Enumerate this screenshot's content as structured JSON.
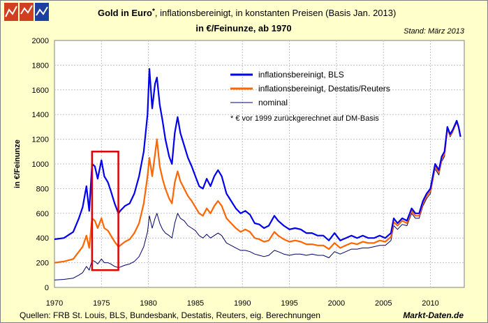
{
  "header": {
    "title_bold": "Gold in Euro",
    "title_star": "*",
    "title_rest": ", inflationsbereinigt, in konstanten Preisen (Basis Jan. 2013)",
    "subtitle": "in €/Feinunze, ab 1970",
    "stand": "Stand: März 2013"
  },
  "footer": {
    "sources": "Quellen: FRB St. Louis, BLS, Bundesbank, Destatis, Reuters, eig. Berechnungen",
    "brand": "Markt-Daten.de"
  },
  "colors": {
    "background": "#ffffcc",
    "plot_background": "#ffffff",
    "grid": "#c0c0c0",
    "bls": "#0000ee",
    "destatis": "#ff6600",
    "nominal": "#000066",
    "highlight": "#dd0000",
    "logo_left": "#d04020",
    "logo_right": "#1f3f9f"
  },
  "logo": {
    "icon": "chart-logo-icon"
  },
  "chart_data": {
    "type": "line",
    "title": "Gold in Euro*, inflationsbereinigt, in konstanten Preisen (Basis Jan. 2013)",
    "subtitle": "in €/Feinunze, ab 1970",
    "xlabel": "",
    "ylabel": "in €/Feinunze",
    "xlim": [
      1970,
      2013.6
    ],
    "ylim": [
      0,
      2000
    ],
    "x_ticks": [
      1970,
      1975,
      1980,
      1985,
      1990,
      1995,
      2000,
      2005,
      2010
    ],
    "y_ticks": [
      0,
      200,
      400,
      600,
      800,
      1000,
      1200,
      1400,
      1600,
      1800,
      2000
    ],
    "grid": true,
    "legend_position": "top-center",
    "annotation": "* € vor 1999 zurückgerechnet auf DM-Basis",
    "highlight_box": {
      "x": [
        1974.0,
        1976.8
      ],
      "y": [
        140,
        1100
      ]
    },
    "series": [
      {
        "name": "inflationsbereinigt, BLS",
        "color": "#0000ee",
        "points": [
          [
            1970,
            390
          ],
          [
            1971,
            400
          ],
          [
            1972,
            450
          ],
          [
            1972.6,
            560
          ],
          [
            1973,
            650
          ],
          [
            1973.4,
            820
          ],
          [
            1973.7,
            620
          ],
          [
            1974,
            1000
          ],
          [
            1974.3,
            980
          ],
          [
            1974.6,
            880
          ],
          [
            1975,
            1030
          ],
          [
            1975.3,
            900
          ],
          [
            1975.7,
            850
          ],
          [
            1976,
            780
          ],
          [
            1976.4,
            680
          ],
          [
            1976.8,
            600
          ],
          [
            1977,
            620
          ],
          [
            1977.5,
            660
          ],
          [
            1978,
            680
          ],
          [
            1978.5,
            760
          ],
          [
            1979,
            900
          ],
          [
            1979.5,
            1100
          ],
          [
            1979.9,
            1400
          ],
          [
            1980.1,
            1770
          ],
          [
            1980.4,
            1450
          ],
          [
            1980.7,
            1650
          ],
          [
            1980.9,
            1700
          ],
          [
            1981.2,
            1480
          ],
          [
            1981.5,
            1350
          ],
          [
            1981.8,
            1200
          ],
          [
            1982.2,
            1060
          ],
          [
            1982.5,
            1000
          ],
          [
            1982.8,
            1250
          ],
          [
            1983.1,
            1380
          ],
          [
            1983.4,
            1250
          ],
          [
            1983.8,
            1150
          ],
          [
            1984.2,
            1050
          ],
          [
            1984.6,
            980
          ],
          [
            1985,
            900
          ],
          [
            1985.4,
            820
          ],
          [
            1985.8,
            800
          ],
          [
            1986.2,
            880
          ],
          [
            1986.6,
            820
          ],
          [
            1987,
            900
          ],
          [
            1987.4,
            950
          ],
          [
            1987.8,
            900
          ],
          [
            1988.3,
            760
          ],
          [
            1988.8,
            700
          ],
          [
            1989.3,
            640
          ],
          [
            1989.8,
            600
          ],
          [
            1990.3,
            620
          ],
          [
            1990.8,
            590
          ],
          [
            1991.3,
            520
          ],
          [
            1991.8,
            510
          ],
          [
            1992.3,
            480
          ],
          [
            1992.8,
            500
          ],
          [
            1993.4,
            580
          ],
          [
            1993.8,
            540
          ],
          [
            1994.4,
            500
          ],
          [
            1995,
            470
          ],
          [
            1995.6,
            480
          ],
          [
            1996.2,
            470
          ],
          [
            1996.8,
            440
          ],
          [
            1997.4,
            440
          ],
          [
            1998,
            420
          ],
          [
            1998.6,
            420
          ],
          [
            1999.2,
            380
          ],
          [
            1999.8,
            440
          ],
          [
            2000.4,
            380
          ],
          [
            2001,
            400
          ],
          [
            2001.6,
            420
          ],
          [
            2002.2,
            400
          ],
          [
            2002.8,
            420
          ],
          [
            2003.4,
            400
          ],
          [
            2004,
            400
          ],
          [
            2004.6,
            420
          ],
          [
            2005.2,
            400
          ],
          [
            2005.8,
            440
          ],
          [
            2006.1,
            560
          ],
          [
            2006.5,
            520
          ],
          [
            2007,
            560
          ],
          [
            2007.5,
            540
          ],
          [
            2008,
            640
          ],
          [
            2008.4,
            600
          ],
          [
            2008.8,
            600
          ],
          [
            2009.2,
            700
          ],
          [
            2009.6,
            760
          ],
          [
            2010,
            800
          ],
          [
            2010.5,
            1000
          ],
          [
            2010.9,
            950
          ],
          [
            2011.2,
            1060
          ],
          [
            2011.5,
            1100
          ],
          [
            2011.8,
            1300
          ],
          [
            2012.1,
            1240
          ],
          [
            2012.4,
            1280
          ],
          [
            2012.8,
            1350
          ],
          [
            2013.0,
            1300
          ],
          [
            2013.2,
            1220
          ]
        ]
      },
      {
        "name": "inflationsbereinigt, Destatis/Reuters",
        "color": "#ff6600",
        "points": [
          [
            1970,
            200
          ],
          [
            1971,
            210
          ],
          [
            1972,
            230
          ],
          [
            1972.6,
            290
          ],
          [
            1973,
            330
          ],
          [
            1973.4,
            420
          ],
          [
            1973.7,
            320
          ],
          [
            1974,
            560
          ],
          [
            1974.3,
            540
          ],
          [
            1974.6,
            480
          ],
          [
            1975,
            560
          ],
          [
            1975.3,
            480
          ],
          [
            1975.7,
            460
          ],
          [
            1976,
            420
          ],
          [
            1976.4,
            370
          ],
          [
            1976.8,
            330
          ],
          [
            1977,
            340
          ],
          [
            1977.5,
            370
          ],
          [
            1978,
            390
          ],
          [
            1978.5,
            440
          ],
          [
            1979,
            520
          ],
          [
            1979.5,
            680
          ],
          [
            1979.9,
            900
          ],
          [
            1980.1,
            1050
          ],
          [
            1980.4,
            900
          ],
          [
            1980.7,
            1080
          ],
          [
            1980.9,
            1200
          ],
          [
            1981.2,
            980
          ],
          [
            1981.5,
            880
          ],
          [
            1981.8,
            800
          ],
          [
            1982.2,
            720
          ],
          [
            1982.5,
            680
          ],
          [
            1982.8,
            850
          ],
          [
            1983.1,
            940
          ],
          [
            1983.4,
            860
          ],
          [
            1983.8,
            800
          ],
          [
            1984.2,
            740
          ],
          [
            1984.6,
            700
          ],
          [
            1985,
            650
          ],
          [
            1985.4,
            600
          ],
          [
            1985.8,
            580
          ],
          [
            1986.2,
            640
          ],
          [
            1986.6,
            600
          ],
          [
            1987,
            660
          ],
          [
            1987.4,
            700
          ],
          [
            1987.8,
            660
          ],
          [
            1988.3,
            560
          ],
          [
            1988.8,
            520
          ],
          [
            1989.3,
            480
          ],
          [
            1989.8,
            450
          ],
          [
            1990.3,
            470
          ],
          [
            1990.8,
            450
          ],
          [
            1991.3,
            400
          ],
          [
            1991.8,
            390
          ],
          [
            1992.3,
            370
          ],
          [
            1992.8,
            380
          ],
          [
            1993.4,
            450
          ],
          [
            1993.8,
            420
          ],
          [
            1994.4,
            390
          ],
          [
            1995,
            370
          ],
          [
            1995.6,
            380
          ],
          [
            1996.2,
            370
          ],
          [
            1996.8,
            350
          ],
          [
            1997.4,
            350
          ],
          [
            1998,
            340
          ],
          [
            1998.6,
            340
          ],
          [
            1999.2,
            310
          ],
          [
            1999.8,
            360
          ],
          [
            2000.4,
            320
          ],
          [
            2001,
            340
          ],
          [
            2001.6,
            360
          ],
          [
            2002.2,
            350
          ],
          [
            2002.8,
            370
          ],
          [
            2003.4,
            360
          ],
          [
            2004,
            360
          ],
          [
            2004.6,
            380
          ],
          [
            2005.2,
            370
          ],
          [
            2005.8,
            410
          ],
          [
            2006.1,
            530
          ],
          [
            2006.5,
            500
          ],
          [
            2007,
            540
          ],
          [
            2007.5,
            520
          ],
          [
            2008,
            620
          ],
          [
            2008.4,
            580
          ],
          [
            2008.8,
            580
          ],
          [
            2009.2,
            680
          ],
          [
            2009.6,
            740
          ],
          [
            2010,
            780
          ],
          [
            2010.5,
            980
          ],
          [
            2010.9,
            930
          ],
          [
            2011.2,
            1040
          ],
          [
            2011.5,
            1080
          ],
          [
            2011.8,
            1290
          ],
          [
            2012.1,
            1230
          ],
          [
            2012.4,
            1270
          ],
          [
            2012.8,
            1340
          ],
          [
            2013.0,
            1300
          ],
          [
            2013.2,
            1220
          ]
        ]
      },
      {
        "name": "nominal",
        "color": "#000066",
        "points": [
          [
            1970,
            60
          ],
          [
            1971,
            65
          ],
          [
            1972,
            75
          ],
          [
            1972.6,
            100
          ],
          [
            1973,
            120
          ],
          [
            1973.4,
            170
          ],
          [
            1973.7,
            140
          ],
          [
            1974,
            220
          ],
          [
            1974.3,
            210
          ],
          [
            1974.6,
            190
          ],
          [
            1975,
            230
          ],
          [
            1975.3,
            200
          ],
          [
            1975.7,
            200
          ],
          [
            1976,
            190
          ],
          [
            1976.4,
            170
          ],
          [
            1976.8,
            160
          ],
          [
            1977,
            165
          ],
          [
            1977.5,
            180
          ],
          [
            1978,
            190
          ],
          [
            1978.5,
            210
          ],
          [
            1979,
            250
          ],
          [
            1979.5,
            330
          ],
          [
            1979.9,
            450
          ],
          [
            1980.1,
            580
          ],
          [
            1980.4,
            480
          ],
          [
            1980.7,
            560
          ],
          [
            1980.9,
            600
          ],
          [
            1981.2,
            520
          ],
          [
            1981.5,
            470
          ],
          [
            1981.8,
            440
          ],
          [
            1982.2,
            420
          ],
          [
            1982.5,
            400
          ],
          [
            1982.8,
            520
          ],
          [
            1983.1,
            600
          ],
          [
            1983.4,
            560
          ],
          [
            1983.8,
            540
          ],
          [
            1984.2,
            500
          ],
          [
            1984.6,
            480
          ],
          [
            1985,
            460
          ],
          [
            1985.4,
            420
          ],
          [
            1985.8,
            400
          ],
          [
            1986.2,
            430
          ],
          [
            1986.6,
            400
          ],
          [
            1987,
            420
          ],
          [
            1987.4,
            440
          ],
          [
            1987.8,
            420
          ],
          [
            1988.3,
            360
          ],
          [
            1988.8,
            340
          ],
          [
            1989.3,
            320
          ],
          [
            1989.8,
            300
          ],
          [
            1990.3,
            300
          ],
          [
            1990.8,
            290
          ],
          [
            1991.3,
            270
          ],
          [
            1991.8,
            260
          ],
          [
            1992.3,
            250
          ],
          [
            1992.8,
            260
          ],
          [
            1993.4,
            300
          ],
          [
            1993.8,
            290
          ],
          [
            1994.4,
            270
          ],
          [
            1995,
            260
          ],
          [
            1995.6,
            270
          ],
          [
            1996.2,
            270
          ],
          [
            1996.8,
            260
          ],
          [
            1997.4,
            270
          ],
          [
            1998,
            260
          ],
          [
            1998.6,
            260
          ],
          [
            1999.2,
            240
          ],
          [
            1999.8,
            290
          ],
          [
            2000.4,
            270
          ],
          [
            2001,
            290
          ],
          [
            2001.6,
            310
          ],
          [
            2002.2,
            310
          ],
          [
            2002.8,
            320
          ],
          [
            2003.4,
            320
          ],
          [
            2004,
            330
          ],
          [
            2004.6,
            340
          ],
          [
            2005.2,
            340
          ],
          [
            2005.8,
            380
          ],
          [
            2006.1,
            500
          ],
          [
            2006.5,
            470
          ],
          [
            2007,
            510
          ],
          [
            2007.5,
            500
          ],
          [
            2008,
            600
          ],
          [
            2008.4,
            560
          ],
          [
            2008.8,
            560
          ],
          [
            2009.2,
            660
          ],
          [
            2009.6,
            720
          ],
          [
            2010,
            760
          ],
          [
            2010.5,
            960
          ],
          [
            2010.9,
            910
          ],
          [
            2011.2,
            1020
          ],
          [
            2011.5,
            1060
          ],
          [
            2011.8,
            1280
          ],
          [
            2012.1,
            1220
          ],
          [
            2012.4,
            1260
          ],
          [
            2012.8,
            1340
          ],
          [
            2013.0,
            1300
          ],
          [
            2013.2,
            1220
          ]
        ]
      }
    ]
  }
}
